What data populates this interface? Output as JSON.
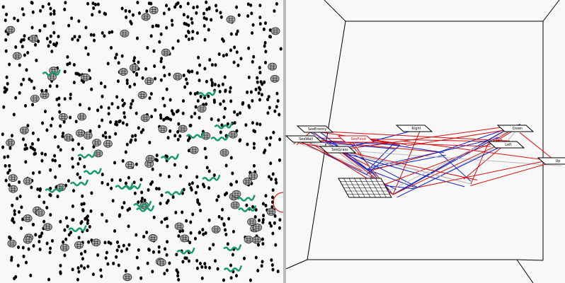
{
  "nodes": [
    {
      "label": "SeeEnemy"
    },
    {
      "label": "SeeWall"
    },
    {
      "label": "SeeFood"
    },
    {
      "label": "SeeGrass"
    },
    {
      "label": "Right"
    },
    {
      "label": "Down"
    },
    {
      "label": "Left"
    },
    {
      "label": "Up"
    }
  ]
}
